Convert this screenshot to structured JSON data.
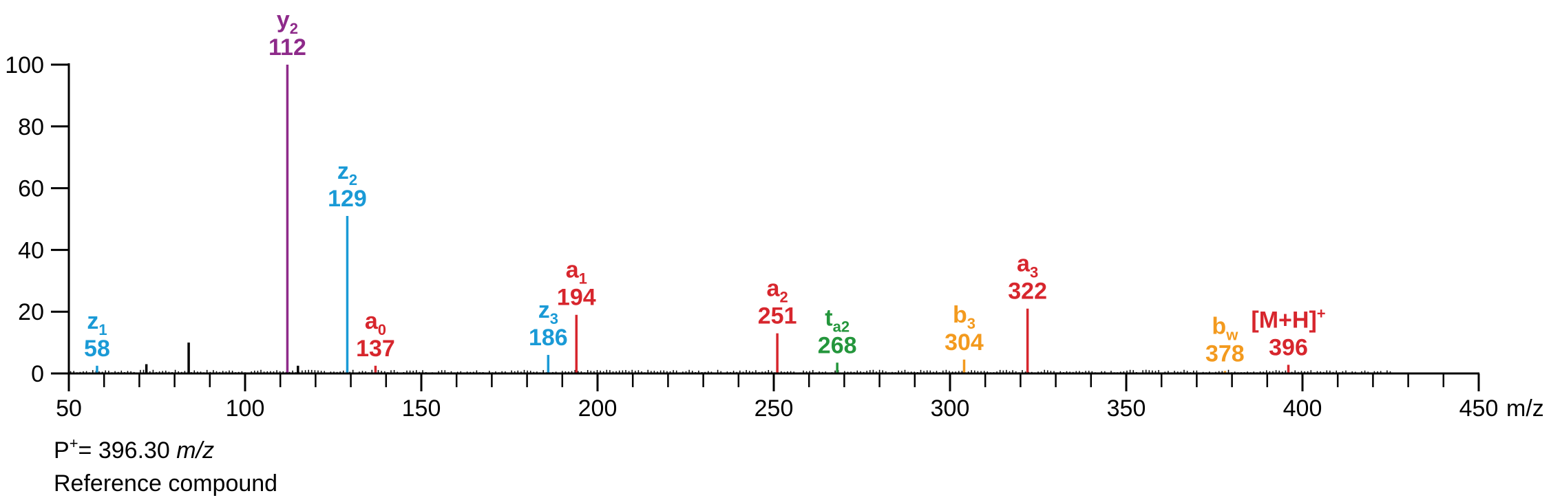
{
  "chart_data": {
    "type": "bar",
    "xlabel": "m/z",
    "ylabel": "",
    "xlim": [
      50,
      450
    ],
    "ylim": [
      0,
      100
    ],
    "x_ticks": [
      50,
      100,
      150,
      200,
      250,
      300,
      350,
      400,
      450
    ],
    "y_ticks": [
      0,
      20,
      40,
      60,
      80,
      100
    ],
    "grid": false,
    "minor_peaks": [
      {
        "x": 72,
        "y": 3
      },
      {
        "x": 84,
        "y": 10
      },
      {
        "x": 115,
        "y": 2.5
      }
    ],
    "labeled_peaks": [
      {
        "x": 58,
        "y": 2.5,
        "ion": "z",
        "subscript": "1",
        "superscript": "",
        "mass": "58",
        "color": "#1a9ad6"
      },
      {
        "x": 112,
        "y": 100,
        "ion": "y",
        "subscript": "2",
        "superscript": "",
        "mass": "112",
        "color": "#8e2a8a"
      },
      {
        "x": 129,
        "y": 51,
        "ion": "z",
        "subscript": "2",
        "superscript": "",
        "mass": "129",
        "color": "#1a9ad6"
      },
      {
        "x": 137,
        "y": 2.5,
        "ion": "a",
        "subscript": "0",
        "superscript": "",
        "mass": "137",
        "color": "#d7262d"
      },
      {
        "x": 186,
        "y": 6,
        "ion": "z",
        "subscript": "3",
        "superscript": "",
        "mass": "186",
        "color": "#1a9ad6"
      },
      {
        "x": 194,
        "y": 19,
        "ion": "a",
        "subscript": "1",
        "superscript": "",
        "mass": "194",
        "color": "#d7262d"
      },
      {
        "x": 251,
        "y": 13,
        "ion": "a",
        "subscript": "2",
        "superscript": "",
        "mass": "251",
        "color": "#d7262d"
      },
      {
        "x": 268,
        "y": 3.5,
        "ion": "t",
        "subscript": "a2",
        "superscript": "",
        "mass": "268",
        "color": "#24963c"
      },
      {
        "x": 304,
        "y": 4.5,
        "ion": "b",
        "subscript": "3",
        "superscript": "",
        "mass": "304",
        "color": "#f39a1e"
      },
      {
        "x": 322,
        "y": 21,
        "ion": "a",
        "subscript": "3",
        "superscript": "",
        "mass": "322",
        "color": "#d7262d"
      },
      {
        "x": 378,
        "y": 0.8,
        "ion": "b",
        "subscript": "w",
        "superscript": "",
        "mass": "378",
        "color": "#f39a1e"
      },
      {
        "x": 396,
        "y": 2.8,
        "ion": "[M+H]",
        "subscript": "",
        "superscript": "+",
        "mass": "396",
        "color": "#d7262d"
      }
    ],
    "annotations": {
      "precursor_prefix": "P",
      "precursor_sup": "+",
      "precursor_value": "= 396.30 ",
      "precursor_unit": "m/z",
      "compound": "Reference compound"
    }
  }
}
